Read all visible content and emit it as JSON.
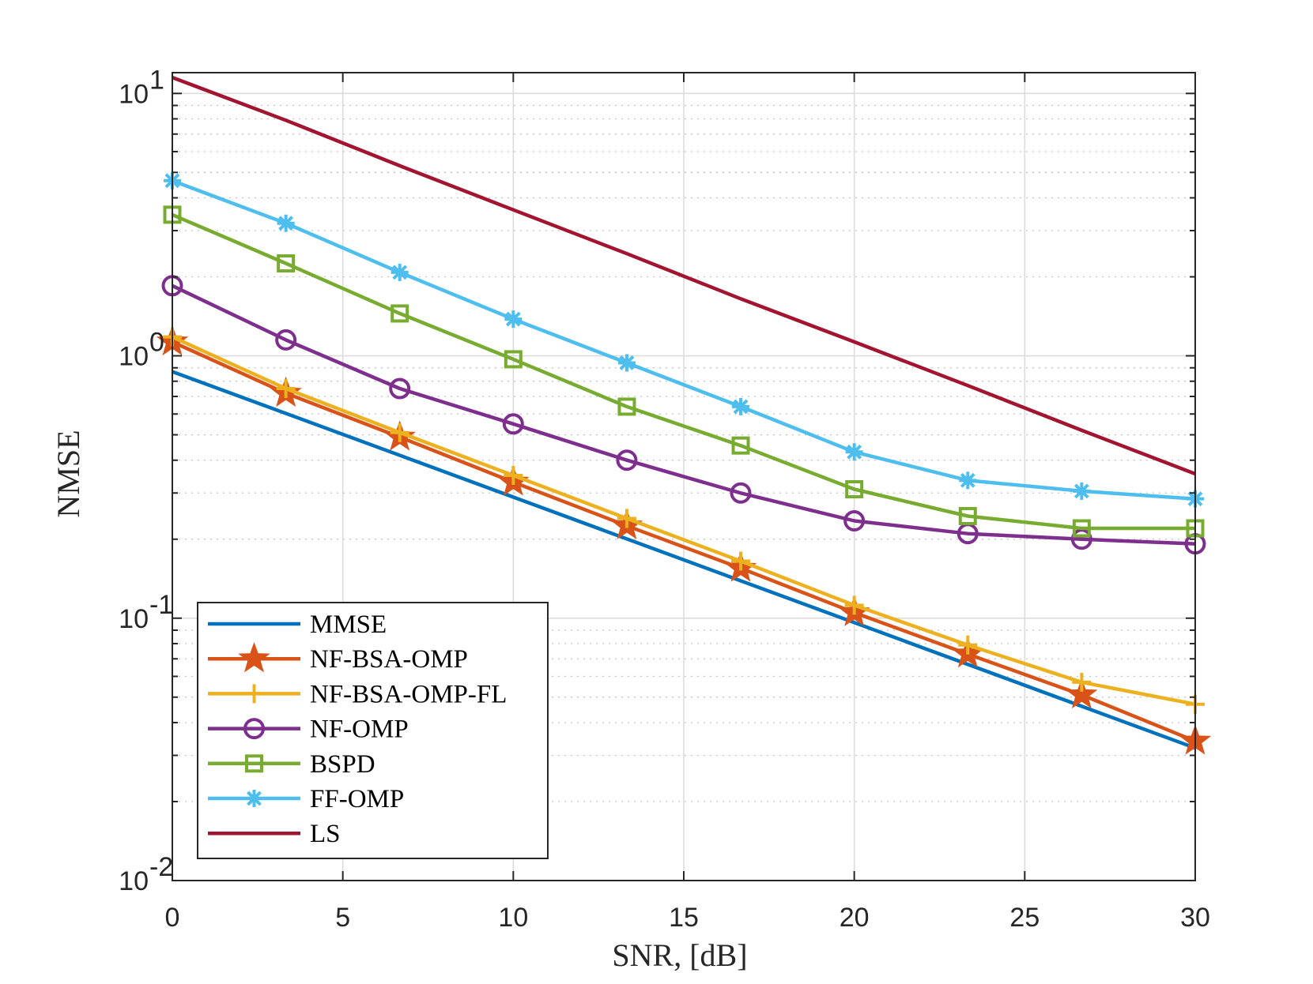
{
  "chart_data": {
    "type": "line",
    "xlabel": "SNR, [dB]",
    "ylabel": "NMSE",
    "xscale": "linear",
    "yscale": "log",
    "xlim": [
      0,
      30
    ],
    "ylim": [
      0.01,
      12
    ],
    "xticks": [
      0,
      5,
      10,
      15,
      20,
      25,
      30
    ],
    "xtick_labels": [
      "0",
      "5",
      "10",
      "15",
      "20",
      "25",
      "30"
    ],
    "yticks": [
      0.01,
      0.1,
      1,
      10
    ],
    "ytick_labels": [
      {
        "base": "10",
        "exp": "-2"
      },
      {
        "base": "10",
        "exp": "-1"
      },
      {
        "base": "10",
        "exp": "0"
      },
      {
        "base": "10",
        "exp": "1"
      }
    ],
    "grid": true,
    "legend_position": "bottom-left",
    "series": [
      {
        "name": "MMSE",
        "color": "#0072BD",
        "marker": "none",
        "x": [
          0,
          30
        ],
        "y": [
          0.87,
          0.032
        ]
      },
      {
        "name": "NF-BSA-OMP",
        "color": "#D95319",
        "marker": "star",
        "x": [
          0,
          3.33,
          6.67,
          10,
          13.33,
          16.67,
          20,
          23.33,
          26.67,
          30
        ],
        "y": [
          1.13,
          0.72,
          0.49,
          0.33,
          0.225,
          0.155,
          0.105,
          0.073,
          0.051,
          0.034
        ]
      },
      {
        "name": "NF-BSA-OMP-FL",
        "color": "#EDB120",
        "marker": "plus",
        "x": [
          0,
          3.33,
          6.67,
          10,
          13.33,
          16.67,
          20,
          23.33,
          26.67,
          30
        ],
        "y": [
          1.18,
          0.75,
          0.51,
          0.35,
          0.24,
          0.165,
          0.112,
          0.079,
          0.057,
          0.047
        ]
      },
      {
        "name": "NF-OMP",
        "color": "#7E2F8E",
        "marker": "circle",
        "x": [
          0,
          3.33,
          6.67,
          10,
          13.33,
          16.67,
          20,
          23.33,
          26.67,
          30
        ],
        "y": [
          1.85,
          1.15,
          0.75,
          0.55,
          0.4,
          0.3,
          0.235,
          0.21,
          0.2,
          0.192
        ]
      },
      {
        "name": "BSPD",
        "color": "#77AC30",
        "marker": "square",
        "x": [
          0,
          3.33,
          6.67,
          10,
          13.33,
          16.67,
          20,
          23.33,
          26.67,
          30
        ],
        "y": [
          3.45,
          2.25,
          1.45,
          0.97,
          0.64,
          0.455,
          0.31,
          0.245,
          0.22,
          0.22
        ]
      },
      {
        "name": "FF-OMP",
        "color": "#4DBEEE",
        "marker": "asterisk",
        "x": [
          0,
          3.33,
          6.67,
          10,
          13.33,
          16.67,
          20,
          23.33,
          26.67,
          30
        ],
        "y": [
          4.65,
          3.2,
          2.08,
          1.38,
          0.94,
          0.64,
          0.43,
          0.335,
          0.305,
          0.285
        ]
      },
      {
        "name": "LS",
        "color": "#A2142F",
        "marker": "none",
        "x": [
          0,
          3.33,
          6.67,
          10,
          13.33,
          16.67,
          20,
          23.33,
          26.67,
          30
        ],
        "y": [
          11.5,
          7.9,
          5.3,
          3.6,
          2.45,
          1.65,
          1.13,
          0.77,
          0.52,
          0.355
        ]
      }
    ]
  }
}
